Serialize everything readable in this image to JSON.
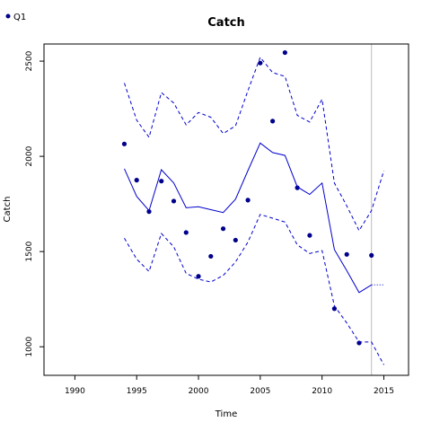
{
  "chart_data": {
    "type": "line",
    "title": "Catch",
    "xlabel": "Time",
    "ylabel": "Catch",
    "xlim": [
      1987.5,
      2017.0
    ],
    "ylim": [
      850,
      2590
    ],
    "x_ticks": [
      1990,
      1995,
      2000,
      2005,
      2010,
      2015
    ],
    "y_ticks": [
      1000,
      1500,
      2000,
      2500
    ],
    "grid": false,
    "legend_position": "top-left",
    "vline_x": 2014,
    "colors": {
      "series": "#0000cc",
      "points": "#00008b",
      "vline": "#bbbbbb",
      "axis": "#000000"
    },
    "series": [
      {
        "name": "Q1",
        "style": "points",
        "x": [
          1994,
          1995,
          1996,
          1997,
          1998,
          1999,
          2000,
          2001,
          2002,
          2003,
          2004,
          2005,
          2006,
          2007,
          2008,
          2009,
          2011,
          2012,
          2013,
          2014
        ],
        "values": [
          2065,
          1875,
          1710,
          1870,
          1765,
          1600,
          1370,
          1475,
          1620,
          1560,
          1770,
          2490,
          2185,
          2545,
          1835,
          1585,
          1200,
          1485,
          1020,
          1480
        ]
      },
      {
        "style": "solid",
        "x": [
          1994,
          1995,
          1996,
          1997,
          1998,
          1999,
          2000,
          2001,
          2002,
          2003,
          2004,
          2005,
          2006,
          2007,
          2008,
          2009,
          2010,
          2011,
          2012,
          2013,
          2014
        ],
        "values": [
          1935,
          1790,
          1715,
          1930,
          1860,
          1730,
          1735,
          1720,
          1705,
          1775,
          1925,
          2070,
          2020,
          2005,
          1840,
          1800,
          1860,
          1510,
          1400,
          1285,
          1325
        ]
      },
      {
        "style": "dashed",
        "x": [
          1994,
          1995,
          1996,
          1997,
          1998,
          1999,
          2000,
          2001,
          2002,
          2003,
          2004,
          2005,
          2006,
          2007,
          2008,
          2009,
          2010,
          2011,
          2012,
          2013,
          2014,
          2015
        ],
        "values": [
          2385,
          2190,
          2100,
          2335,
          2280,
          2165,
          2230,
          2205,
          2120,
          2160,
          2345,
          2520,
          2440,
          2420,
          2215,
          2180,
          2300,
          1860,
          1740,
          1610,
          1715,
          1925
        ]
      },
      {
        "style": "dashed",
        "x": [
          1994,
          1995,
          1996,
          1997,
          1998,
          1999,
          2000,
          2001,
          2002,
          2003,
          2004,
          2005,
          2006,
          2007,
          2008,
          2009,
          2010,
          2011,
          2012,
          2013,
          2014,
          2015
        ],
        "values": [
          1570,
          1460,
          1395,
          1595,
          1525,
          1385,
          1355,
          1340,
          1375,
          1445,
          1550,
          1695,
          1675,
          1655,
          1535,
          1490,
          1505,
          1215,
          1125,
          1025,
          1025,
          905
        ]
      },
      {
        "style": "dotted",
        "x": [
          2014,
          2015
        ],
        "values": [
          1325,
          1325
        ]
      }
    ]
  }
}
